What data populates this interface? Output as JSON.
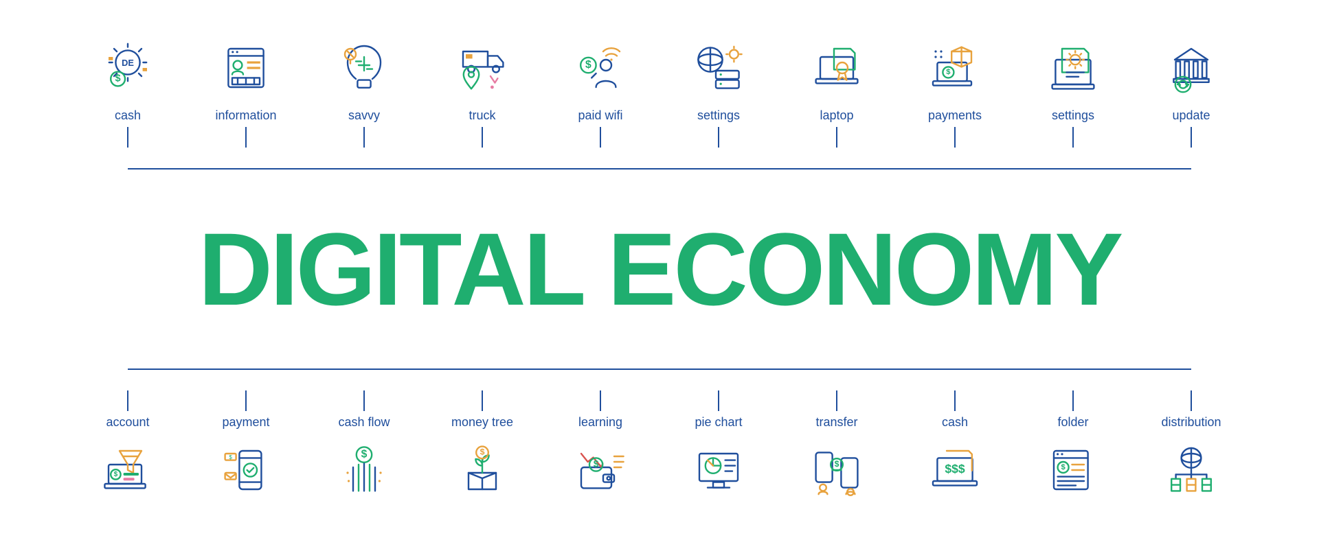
{
  "title": "DIGITAL ECONOMY",
  "title_color": "#1fae6f",
  "title_fontsize": 150,
  "label_color": "#1f4e9c",
  "label_fontsize": 18,
  "connector_color": "#1f4e9c",
  "background_color": "#ffffff",
  "icon_stroke": "#1f4e9c",
  "icon_accent_green": "#1fae6f",
  "icon_accent_orange": "#e8a23d",
  "icon_accent_red": "#d9534f",
  "icon_accent_pink": "#e77ca3",
  "rows": {
    "top": [
      {
        "label": "cash",
        "icon": "gear-dollar"
      },
      {
        "label": "information",
        "icon": "browser-profile"
      },
      {
        "label": "savvy",
        "icon": "bulb-circuit"
      },
      {
        "label": "truck",
        "icon": "truck-pin"
      },
      {
        "label": "paid wifi",
        "icon": "wifi-person-dollar"
      },
      {
        "label": "settings",
        "icon": "globe-server-gear"
      },
      {
        "label": "laptop",
        "icon": "laptop-badge"
      },
      {
        "label": "payments",
        "icon": "laptop-box-dollar"
      },
      {
        "label": "settings",
        "icon": "doc-gear"
      },
      {
        "label": "update",
        "icon": "bank-refresh"
      }
    ],
    "bottom": [
      {
        "label": "account",
        "icon": "laptop-funnel"
      },
      {
        "label": "payment",
        "icon": "phone-check-msgs"
      },
      {
        "label": "cash flow",
        "icon": "dollar-stream"
      },
      {
        "label": "money tree",
        "icon": "box-plant-dollar"
      },
      {
        "label": "learning",
        "icon": "wallet-chart-dollar"
      },
      {
        "label": "pie chart",
        "icon": "monitor-pie"
      },
      {
        "label": "transfer",
        "icon": "phones-dollar-users"
      },
      {
        "label": "cash",
        "icon": "laptop-dollars"
      },
      {
        "label": "folder",
        "icon": "browser-doc-dollar"
      },
      {
        "label": "distribution",
        "icon": "globe-servers"
      }
    ]
  }
}
